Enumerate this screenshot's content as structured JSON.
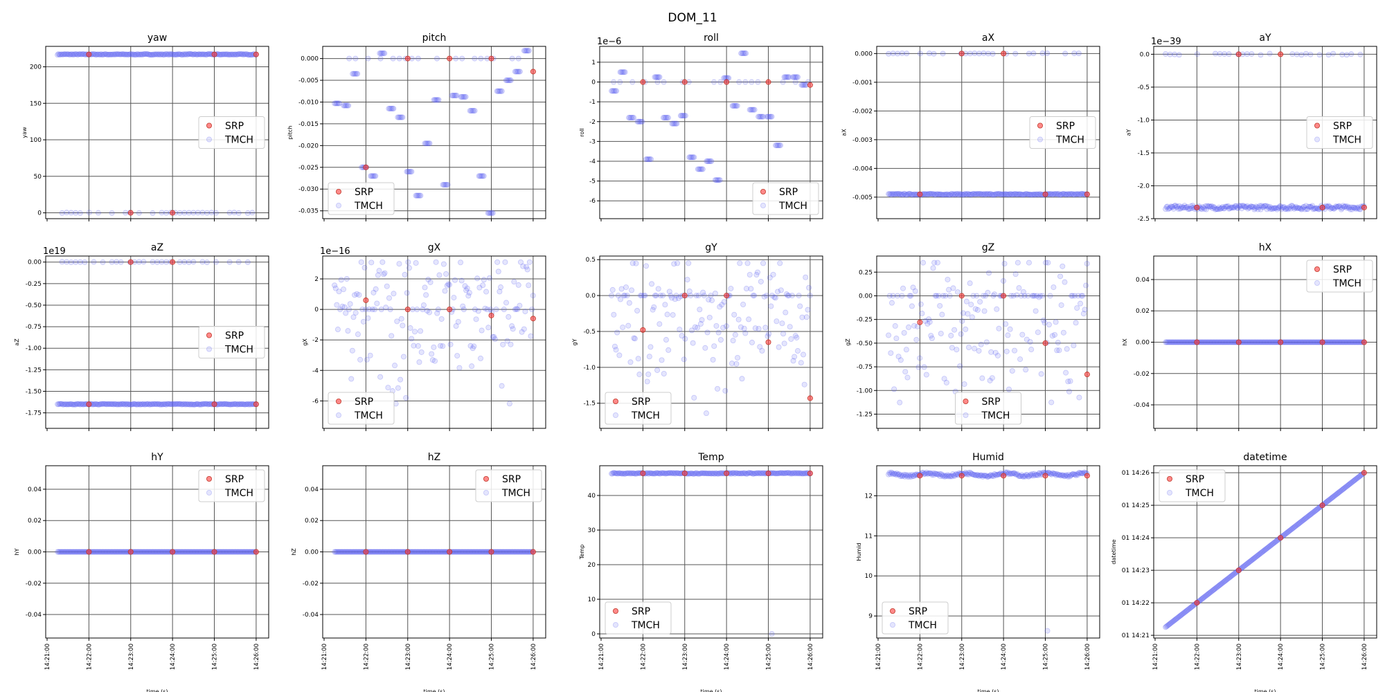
{
  "figure": {
    "title": "DOM_11"
  },
  "legend": {
    "entries": [
      {
        "name": "SRP",
        "color": "#ff3b3b"
      },
      {
        "name": "TMCH",
        "color": "#5a5cf0"
      }
    ]
  },
  "chart_data": [
    {
      "type": "scatter",
      "title": "yaw",
      "ylabel": "yaw",
      "xlabel": "",
      "yticks": [
        "0",
        "50",
        "100",
        "150",
        "200"
      ],
      "yticks_value": [
        0,
        50,
        100,
        150,
        200
      ],
      "ylim": [
        -8,
        228
      ],
      "legend_position": "center-right",
      "series": [
        {
          "name": "SRP",
          "x": [
            60,
            120,
            180,
            240,
            300
          ],
          "y": [
            217,
            0,
            0,
            217,
            217
          ]
        },
        {
          "name": "TMCH",
          "bands": [
            {
              "y": 217,
              "spread": 0.6
            },
            {
              "y": 0,
              "spread": 0.4,
              "sparse": true
            }
          ]
        }
      ]
    },
    {
      "type": "scatter",
      "title": "pitch",
      "ylabel": "pitch",
      "xlabel": "",
      "yticks": [
        "0.000",
        "-0.005",
        "-0.010",
        "-0.015",
        "-0.020",
        "-0.025",
        "-0.030",
        "-0.035"
      ],
      "yticks_value": [
        0,
        -0.005,
        -0.01,
        -0.015,
        -0.02,
        -0.025,
        -0.03,
        -0.035
      ],
      "ylim": [
        -0.0368,
        0.0028
      ],
      "legend_position": "bottom-left",
      "series": [
        {
          "name": "SRP",
          "x": [
            60,
            120,
            180,
            240,
            300
          ],
          "y": [
            -0.025,
            0,
            0,
            0,
            -0.003
          ]
        },
        {
          "name": "TMCH",
          "steps": [
            -0.0103,
            -0.0108,
            -0.0035,
            -0.025,
            -0.027,
            0.0012,
            -0.0115,
            -0.0135,
            -0.026,
            -0.0315,
            -0.0195,
            -0.0095,
            -0.029,
            -0.0085,
            -0.0088,
            -0.012,
            -0.027,
            -0.0355,
            -0.0075,
            -0.005,
            -0.003,
            0.0018
          ],
          "zero_sparse": true
        }
      ]
    },
    {
      "type": "scatter",
      "title": "roll",
      "ylabel": "roll",
      "xlabel": "",
      "offset_label": "1e−6",
      "yticks": [
        "1",
        "0",
        "-1",
        "-2",
        "-3",
        "-4",
        "-5",
        "-6"
      ],
      "yticks_value": [
        1,
        0,
        -1,
        -2,
        -3,
        -4,
        -5,
        -6
      ],
      "ylim": [
        -6.9,
        1.8
      ],
      "legend_position": "bottom-right",
      "series": [
        {
          "name": "SRP",
          "x": [
            60,
            120,
            180,
            240,
            300
          ],
          "y": [
            0,
            0,
            0,
            0,
            -0.15
          ]
        },
        {
          "name": "TMCH",
          "steps": [
            -0.45,
            0.5,
            -1.8,
            -2.0,
            -3.9,
            0.25,
            -1.8,
            -2.1,
            -1.7,
            -3.8,
            -4.4,
            -4.0,
            -4.95,
            0.2,
            -1.2,
            1.45,
            -1.4,
            -1.75,
            -1.75,
            -3.2,
            0.25,
            0.25,
            -0.15
          ],
          "zero_sparse": true
        }
      ]
    },
    {
      "type": "scatter",
      "title": "aX",
      "ylabel": "aX",
      "xlabel": "",
      "yticks": [
        "0.000",
        "-0.001",
        "-0.002",
        "-0.003",
        "-0.004",
        "-0.005"
      ],
      "yticks_value": [
        0,
        -0.001,
        -0.002,
        -0.003,
        -0.004,
        -0.005
      ],
      "ylim": [
        -0.00575,
        0.00025
      ],
      "legend_position": "center-right",
      "series": [
        {
          "name": "SRP",
          "x": [
            60,
            120,
            180,
            240,
            300
          ],
          "y": [
            -0.0049,
            0,
            0,
            -0.0049,
            -0.0049
          ]
        },
        {
          "name": "TMCH",
          "bands": [
            {
              "y": -0.0049,
              "spread": 2e-05
            },
            {
              "y": 0,
              "spread": 1e-05,
              "sparse": true
            }
          ]
        }
      ]
    },
    {
      "type": "scatter",
      "title": "aY",
      "ylabel": "aY",
      "xlabel": "",
      "offset_label": "1e−39",
      "yticks": [
        "0.0",
        "-0.5",
        "-1.0",
        "-1.5",
        "-2.0",
        "-2.5"
      ],
      "yticks_value": [
        0,
        -0.5,
        -1,
        -1.5,
        -2,
        -2.5
      ],
      "ylim": [
        -2.5,
        0.12
      ],
      "legend_position": "center-right",
      "series": [
        {
          "name": "SRP",
          "x": [
            60,
            120,
            180,
            240,
            300
          ],
          "y": [
            -2.33,
            0,
            0,
            -2.33,
            -2.33
          ]
        },
        {
          "name": "TMCH",
          "bands": [
            {
              "y": -2.33,
              "spread": 0.03
            },
            {
              "y": 0,
              "spread": 0.01,
              "sparse": true
            }
          ]
        }
      ]
    },
    {
      "type": "scatter",
      "title": "aZ",
      "ylabel": "aZ",
      "xlabel": "",
      "offset_label": "1e19",
      "yticks": [
        "0.00",
        "-0.25",
        "-0.50",
        "-0.75",
        "-1.00",
        "-1.25",
        "-1.50",
        "-1.75"
      ],
      "yticks_value": [
        0,
        -0.25,
        -0.5,
        -0.75,
        -1,
        -1.25,
        -1.5,
        -1.75
      ],
      "ylim": [
        -1.93,
        0.07
      ],
      "legend_position": "center-right",
      "series": [
        {
          "name": "SRP",
          "x": [
            60,
            120,
            180,
            240,
            300
          ],
          "y": [
            -1.65,
            0,
            0,
            -1.65,
            -1.65
          ]
        },
        {
          "name": "TMCH",
          "bands": [
            {
              "y": -1.65,
              "spread": 0.005
            },
            {
              "y": 0,
              "spread": 0.003,
              "sparse": true
            }
          ]
        }
      ]
    },
    {
      "type": "scatter",
      "title": "gX",
      "ylabel": "gX",
      "xlabel": "",
      "offset_label": "1e−16",
      "yticks": [
        "2",
        "0",
        "-2",
        "-4",
        "-6"
      ],
      "yticks_value": [
        2,
        0,
        -2,
        -4,
        -6
      ],
      "ylim": [
        -7.8,
        3.5
      ],
      "legend_position": "bottom-left",
      "series": [
        {
          "name": "SRP",
          "x": [
            60,
            120,
            180,
            240,
            300
          ],
          "y": [
            0.6,
            0,
            0,
            -0.4,
            -0.6
          ]
        },
        {
          "name": "TMCH",
          "scatter": {
            "min": -7.2,
            "max": 3.1,
            "centre": -0.3
          }
        }
      ]
    },
    {
      "type": "scatter",
      "title": "gY",
      "ylabel": "gY",
      "xlabel": "",
      "yticks": [
        "0.5",
        "0.0",
        "-0.5",
        "-1.0",
        "-1.5"
      ],
      "yticks_value": [
        0.5,
        0,
        -0.5,
        -1,
        -1.5
      ],
      "ylim": [
        -1.85,
        0.55
      ],
      "legend_position": "bottom-left",
      "series": [
        {
          "name": "SRP",
          "x": [
            60,
            120,
            180,
            240,
            300
          ],
          "y": [
            -0.48,
            0,
            0,
            -0.65,
            -1.43
          ]
        },
        {
          "name": "TMCH",
          "scatter": {
            "min": -1.75,
            "max": 0.45,
            "centre": -0.35
          }
        }
      ]
    },
    {
      "type": "scatter",
      "title": "gZ",
      "ylabel": "gZ",
      "xlabel": "",
      "yticks": [
        "0.25",
        "0.00",
        "-0.25",
        "-0.50",
        "-0.75",
        "-1.00",
        "-1.25"
      ],
      "yticks_value": [
        0.25,
        0,
        -0.25,
        -0.5,
        -0.75,
        -1,
        -1.25
      ],
      "ylim": [
        -1.4,
        0.42
      ],
      "legend_position": "bottom-center",
      "series": [
        {
          "name": "SRP",
          "x": [
            60,
            120,
            180,
            240,
            300
          ],
          "y": [
            -0.28,
            0,
            0,
            -0.5,
            -0.83
          ]
        },
        {
          "name": "TMCH",
          "scatter": {
            "min": -1.3,
            "max": 0.35,
            "centre": -0.3
          }
        }
      ]
    },
    {
      "type": "scatter",
      "title": "hX",
      "ylabel": "hX",
      "xlabel": "",
      "yticks": [
        "0.04",
        "0.02",
        "0.00",
        "-0.02",
        "-0.04"
      ],
      "yticks_value": [
        0.04,
        0.02,
        0,
        -0.02,
        -0.04
      ],
      "ylim": [
        -0.055,
        0.055
      ],
      "legend_position": "top-right",
      "series": [
        {
          "name": "SRP",
          "x": [
            60,
            120,
            180,
            240,
            300
          ],
          "y": [
            0,
            0,
            0,
            0,
            0
          ]
        },
        {
          "name": "TMCH",
          "bands": [
            {
              "y": 0,
              "spread": 0
            }
          ]
        }
      ]
    },
    {
      "type": "scatter",
      "title": "hY",
      "ylabel": "hY",
      "xlabel": "time (s)",
      "yticks": [
        "0.04",
        "0.02",
        "0.00",
        "-0.02",
        "-0.04"
      ],
      "yticks_value": [
        0.04,
        0.02,
        0,
        -0.02,
        -0.04
      ],
      "ylim": [
        -0.055,
        0.055
      ],
      "legend_position": "top-right",
      "series": [
        {
          "name": "SRP",
          "x": [
            60,
            120,
            180,
            240,
            300
          ],
          "y": [
            0,
            0,
            0,
            0,
            0
          ]
        },
        {
          "name": "TMCH",
          "bands": [
            {
              "y": 0,
              "spread": 0
            }
          ]
        }
      ]
    },
    {
      "type": "scatter",
      "title": "hZ",
      "ylabel": "hZ",
      "xlabel": "time (s)",
      "yticks": [
        "0.04",
        "0.02",
        "0.00",
        "-0.02",
        "-0.04"
      ],
      "yticks_value": [
        0.04,
        0.02,
        0,
        -0.02,
        -0.04
      ],
      "ylim": [
        -0.055,
        0.055
      ],
      "legend_position": "top-right",
      "series": [
        {
          "name": "SRP",
          "x": [
            60,
            120,
            180,
            240,
            300
          ],
          "y": [
            0,
            0,
            0,
            0,
            0
          ]
        },
        {
          "name": "TMCH",
          "bands": [
            {
              "y": 0,
              "spread": 0
            }
          ]
        }
      ]
    },
    {
      "type": "scatter",
      "title": "Temp",
      "ylabel": "Temp",
      "xlabel": "time (s)",
      "yticks": [
        "40",
        "30",
        "20",
        "10",
        "0"
      ],
      "yticks_value": [
        40,
        30,
        20,
        10,
        0
      ],
      "ylim": [
        -1.2,
        48.6
      ],
      "legend_position": "bottom-left",
      "series": [
        {
          "name": "SRP",
          "x": [
            60,
            120,
            180,
            240,
            300
          ],
          "y": [
            46.4,
            46.4,
            46.4,
            46.4,
            46.4
          ]
        },
        {
          "name": "TMCH",
          "bands": [
            {
              "y": 46.4,
              "spread": 0.15
            }
          ],
          "outliers": [
            {
              "x": 245,
              "y": 0
            }
          ]
        }
      ]
    },
    {
      "type": "scatter",
      "title": "Humid",
      "ylabel": "Humid",
      "xlabel": "time (s)",
      "yticks": [
        "12",
        "11",
        "10",
        "9"
      ],
      "yticks_value": [
        12,
        11,
        10,
        9
      ],
      "ylim": [
        8.45,
        12.75
      ],
      "legend_position": "bottom-left",
      "series": [
        {
          "name": "SRP",
          "x": [
            60,
            120,
            180,
            240,
            300
          ],
          "y": [
            12.5,
            12.5,
            12.5,
            12.5,
            12.5
          ]
        },
        {
          "name": "TMCH",
          "bands": [
            {
              "y": 12.53,
              "spread": 0.03,
              "wave": true
            }
          ],
          "outliers": [
            {
              "x": 243,
              "y": 8.63
            }
          ]
        }
      ]
    },
    {
      "type": "line",
      "title": "datetime",
      "ylabel": "datetime",
      "xlabel": "time (s)",
      "yticks": [
        "01 14:26",
        "01 14:25",
        "01 14:24",
        "01 14:23",
        "01 14:22",
        "01 14:21"
      ],
      "yticks_value": [
        300,
        240,
        180,
        120,
        60,
        0
      ],
      "ylim": [
        -5,
        313
      ],
      "legend_position": "top-left",
      "series": [
        {
          "name": "SRP",
          "x": [
            60,
            120,
            180,
            240,
            300
          ],
          "y": [
            60,
            120,
            180,
            240,
            300
          ]
        },
        {
          "name": "TMCH",
          "line": {
            "from": [
              15,
              15
            ],
            "to": [
              300,
              300
            ]
          }
        }
      ]
    }
  ],
  "xaxis": {
    "ticks": [
      "14:21:00",
      "14:22:00",
      "14:23:00",
      "14:24:00",
      "14:25:00",
      "14:26:00"
    ],
    "ticks_value": [
      0,
      60,
      120,
      180,
      240,
      300
    ],
    "xlim": [
      -2,
      318
    ]
  }
}
